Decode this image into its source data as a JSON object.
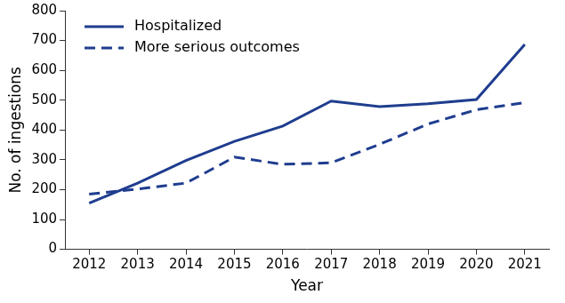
{
  "chart_data": {
    "type": "line",
    "x_label": "Year",
    "y_label": "No. of ingestions",
    "categories": [
      "2012",
      "2013",
      "2014",
      "2015",
      "2016",
      "2017",
      "2018",
      "2019",
      "2020",
      "2021"
    ],
    "series": [
      {
        "name": "Hospitalized",
        "color": "#1f3d8f",
        "line_style": "solid",
        "values": [
          155,
          222,
          298,
          362,
          413,
          497,
          478,
          488,
          502,
          687
        ]
      },
      {
        "name": "More serious outcomes",
        "color": "#1f3d8f",
        "line_style": "dashed",
        "values": [
          185,
          202,
          222,
          309,
          285,
          290,
          352,
          420,
          468,
          492
        ]
      }
    ],
    "ylim": [
      0,
      800
    ],
    "yticks": [
      0,
      100,
      200,
      300,
      400,
      500,
      600,
      700,
      800
    ],
    "grid": false,
    "legend": "upper left"
  }
}
